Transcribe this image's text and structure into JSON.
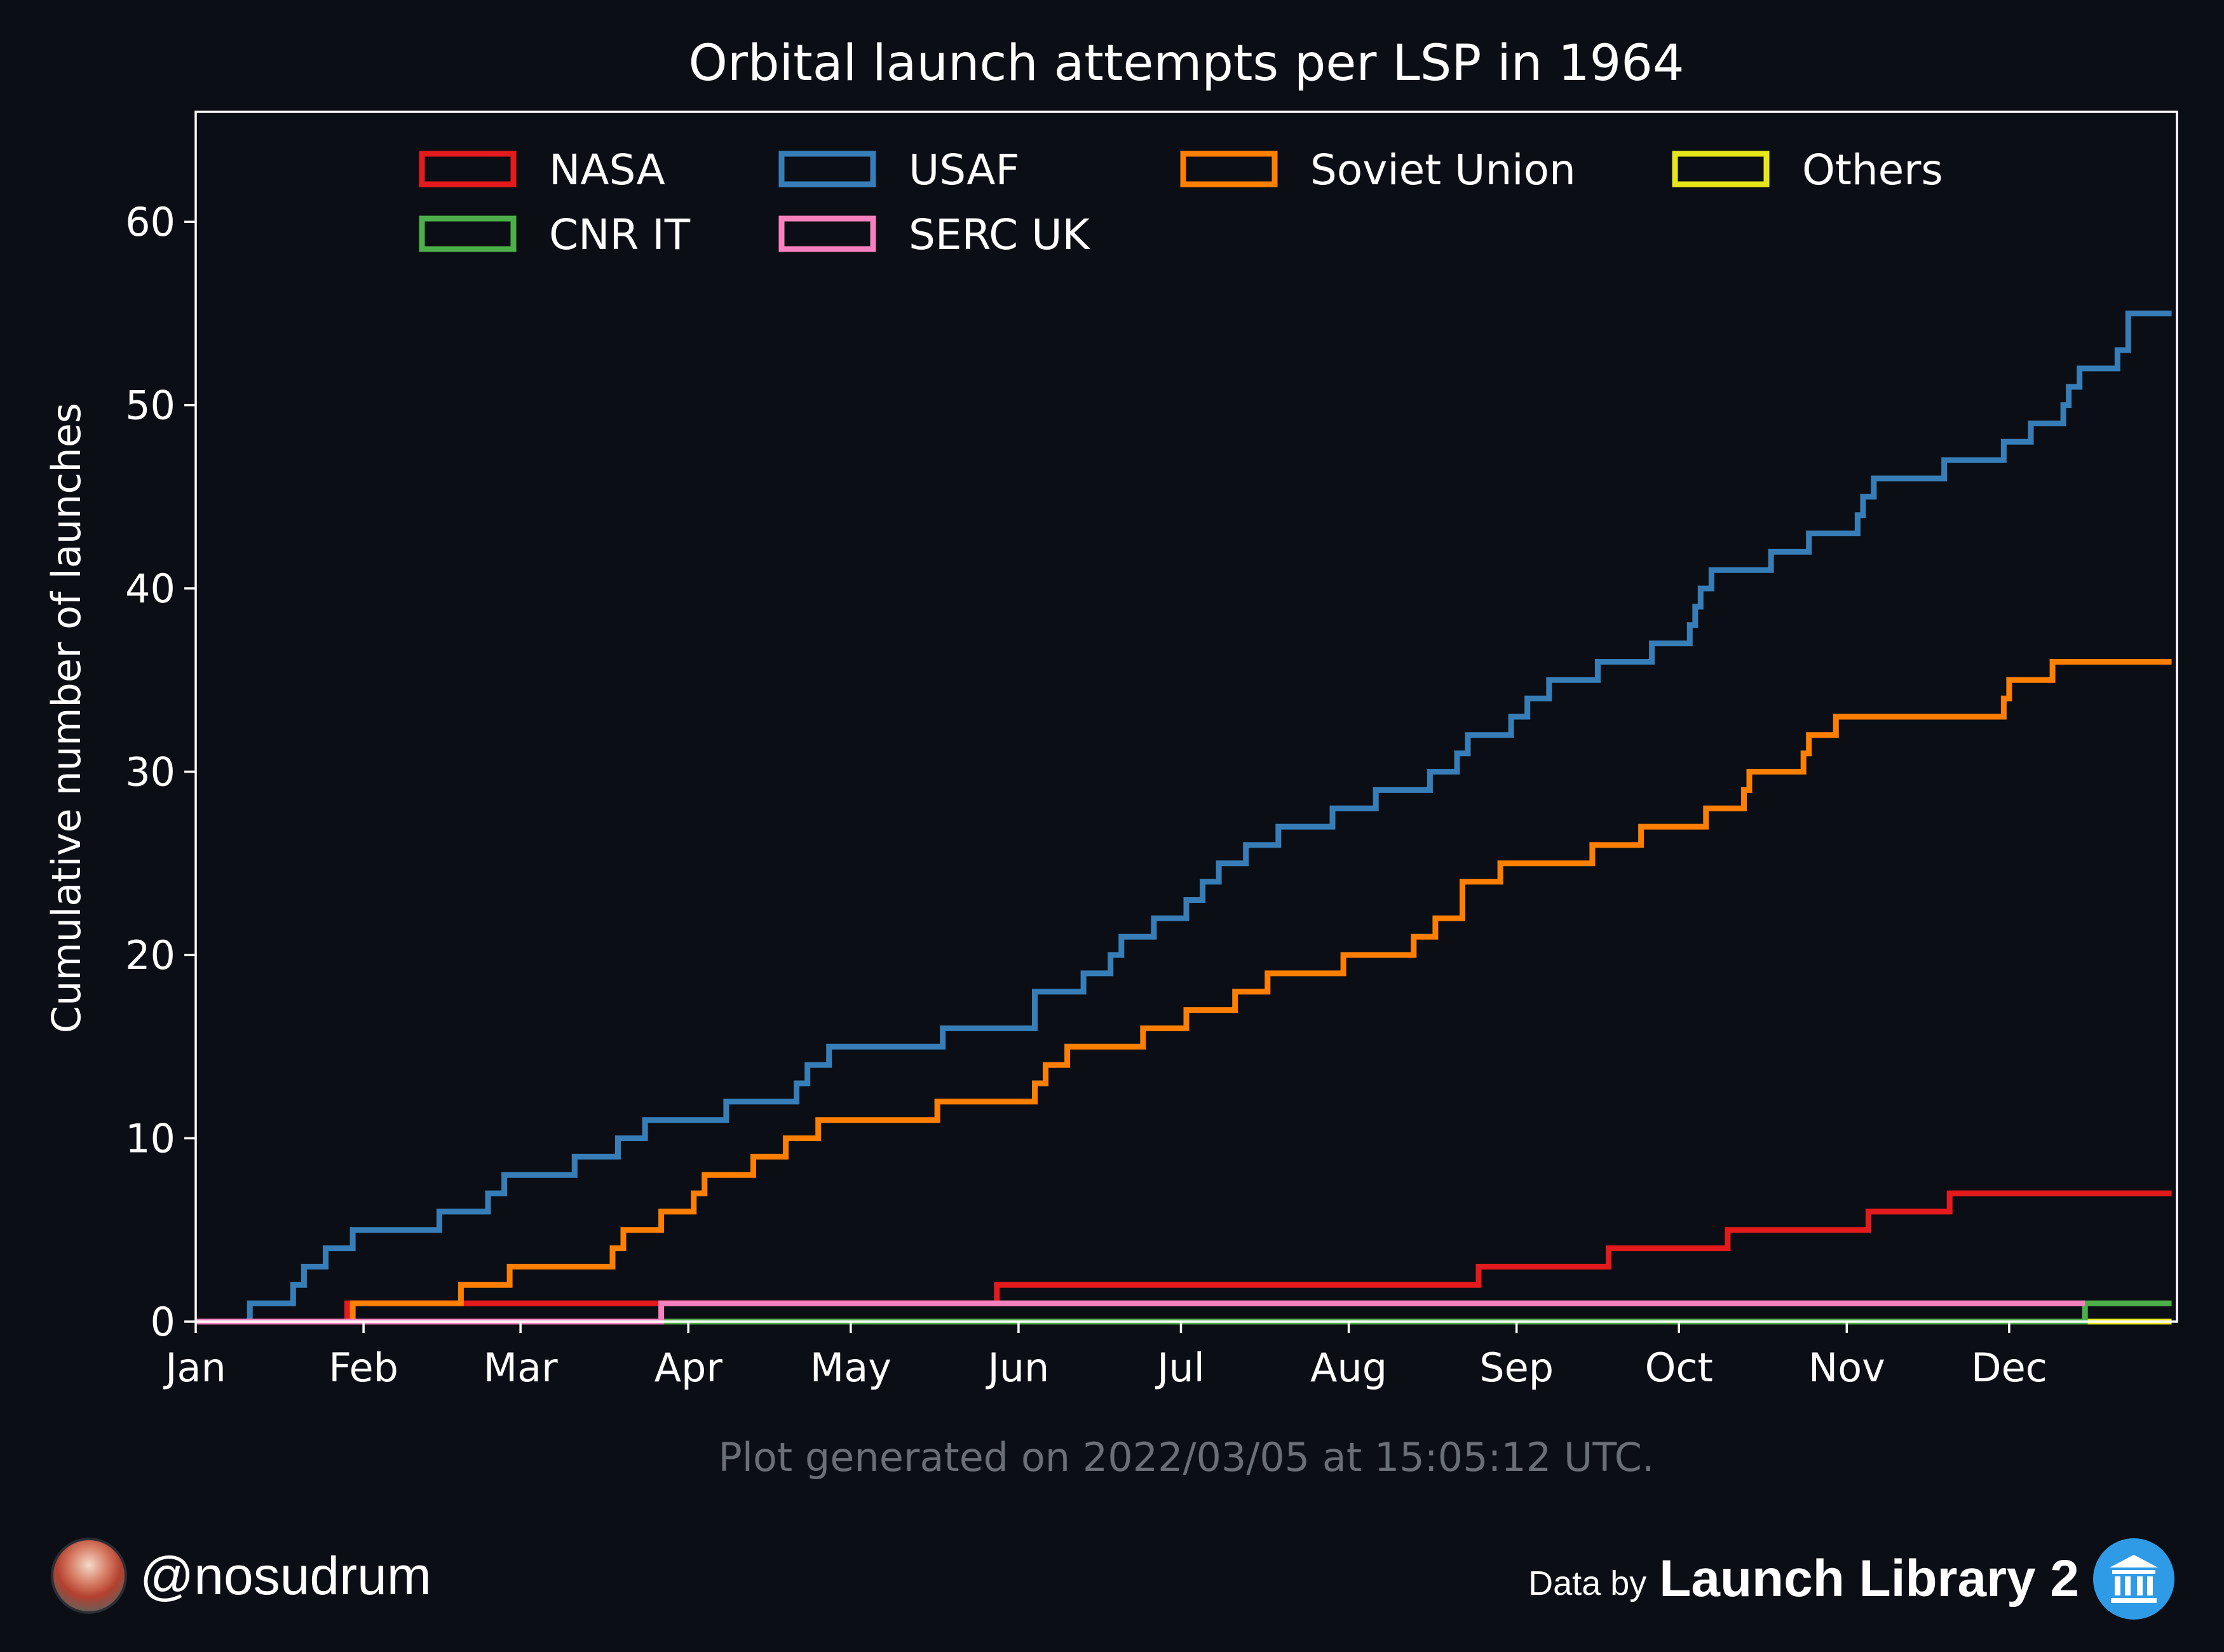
{
  "chart_data": {
    "type": "line",
    "step": true,
    "title": "Orbital launch attempts per LSP in 1964",
    "xlabel": "",
    "ylabel": "Cumulative number of launches",
    "xlim": [
      "1964-01-01",
      "1964-12-31"
    ],
    "ylim": [
      0,
      66
    ],
    "yticks": [
      0,
      10,
      20,
      30,
      40,
      50,
      60
    ],
    "xticks": [
      {
        "label": "Jan",
        "date": "1964-01-01"
      },
      {
        "label": "Feb",
        "date": "1964-02-01"
      },
      {
        "label": "Mar",
        "date": "1964-03-01"
      },
      {
        "label": "Apr",
        "date": "1964-04-01"
      },
      {
        "label": "May",
        "date": "1964-05-01"
      },
      {
        "label": "Jun",
        "date": "1964-06-01"
      },
      {
        "label": "Jul",
        "date": "1964-07-01"
      },
      {
        "label": "Aug",
        "date": "1964-08-01"
      },
      {
        "label": "Sep",
        "date": "1964-09-01"
      },
      {
        "label": "Oct",
        "date": "1964-10-01"
      },
      {
        "label": "Nov",
        "date": "1964-11-01"
      },
      {
        "label": "Dec",
        "date": "1964-12-01"
      }
    ],
    "grid": false,
    "legend_position": "top",
    "series": [
      {
        "name": "NASA",
        "color": "#e41a1c",
        "points": [
          [
            "1964-01-01",
            0
          ],
          [
            "1964-01-29",
            1
          ],
          [
            "1964-05-28",
            2
          ],
          [
            "1964-08-25",
            3
          ],
          [
            "1964-09-18",
            4
          ],
          [
            "1964-10-10",
            5
          ],
          [
            "1964-11-05",
            6
          ],
          [
            "1964-11-20",
            7
          ],
          [
            "1964-12-31",
            7
          ]
        ]
      },
      {
        "name": "USAF",
        "color": "#377eb8",
        "points": [
          [
            "1964-01-01",
            0
          ],
          [
            "1964-01-11",
            1
          ],
          [
            "1964-01-19",
            2
          ],
          [
            "1964-01-21",
            3
          ],
          [
            "1964-01-25",
            4
          ],
          [
            "1964-01-30",
            5
          ],
          [
            "1964-02-15",
            6
          ],
          [
            "1964-02-24",
            7
          ],
          [
            "1964-02-27",
            8
          ],
          [
            "1964-03-11",
            9
          ],
          [
            "1964-03-19",
            10
          ],
          [
            "1964-03-24",
            11
          ],
          [
            "1964-04-08",
            12
          ],
          [
            "1964-04-21",
            13
          ],
          [
            "1964-04-23",
            14
          ],
          [
            "1964-04-27",
            15
          ],
          [
            "1964-05-18",
            16
          ],
          [
            "1964-06-04",
            18
          ],
          [
            "1964-06-13",
            19
          ],
          [
            "1964-06-18",
            20
          ],
          [
            "1964-06-20",
            21
          ],
          [
            "1964-06-26",
            22
          ],
          [
            "1964-07-02",
            23
          ],
          [
            "1964-07-05",
            24
          ],
          [
            "1964-07-08",
            25
          ],
          [
            "1964-07-13",
            26
          ],
          [
            "1964-07-19",
            27
          ],
          [
            "1964-07-29",
            28
          ],
          [
            "1964-08-06",
            29
          ],
          [
            "1964-08-16",
            30
          ],
          [
            "1964-08-21",
            31
          ],
          [
            "1964-08-23",
            32
          ],
          [
            "1964-08-31",
            33
          ],
          [
            "1964-09-03",
            34
          ],
          [
            "1964-09-07",
            35
          ],
          [
            "1964-09-16",
            36
          ],
          [
            "1964-09-26",
            37
          ],
          [
            "1964-10-03",
            38
          ],
          [
            "1964-10-04",
            39
          ],
          [
            "1964-10-05",
            40
          ],
          [
            "1964-10-07",
            41
          ],
          [
            "1964-10-18",
            42
          ],
          [
            "1964-10-25",
            43
          ],
          [
            "1964-11-03",
            44
          ],
          [
            "1964-11-04",
            45
          ],
          [
            "1964-11-06",
            46
          ],
          [
            "1964-11-19",
            47
          ],
          [
            "1964-11-30",
            48
          ],
          [
            "1964-12-05",
            49
          ],
          [
            "1964-12-11",
            50
          ],
          [
            "1964-12-12",
            51
          ],
          [
            "1964-12-14",
            52
          ],
          [
            "1964-12-21",
            53
          ],
          [
            "1964-12-23",
            55
          ],
          [
            "1964-12-31",
            55
          ]
        ]
      },
      {
        "name": "Soviet Union",
        "color": "#ff7f00",
        "points": [
          [
            "1964-01-01",
            0
          ],
          [
            "1964-01-30",
            1
          ],
          [
            "1964-02-19",
            2
          ],
          [
            "1964-02-28",
            3
          ],
          [
            "1964-03-18",
            4
          ],
          [
            "1964-03-20",
            5
          ],
          [
            "1964-03-27",
            6
          ],
          [
            "1964-04-02",
            7
          ],
          [
            "1964-04-04",
            8
          ],
          [
            "1964-04-13",
            9
          ],
          [
            "1964-04-19",
            10
          ],
          [
            "1964-04-25",
            11
          ],
          [
            "1964-05-17",
            12
          ],
          [
            "1964-06-04",
            13
          ],
          [
            "1964-06-06",
            14
          ],
          [
            "1964-06-10",
            15
          ],
          [
            "1964-06-24",
            16
          ],
          [
            "1964-07-02",
            17
          ],
          [
            "1964-07-11",
            18
          ],
          [
            "1964-07-17",
            19
          ],
          [
            "1964-07-31",
            20
          ],
          [
            "1964-08-13",
            21
          ],
          [
            "1964-08-17",
            22
          ],
          [
            "1964-08-22",
            24
          ],
          [
            "1964-08-29",
            25
          ],
          [
            "1964-09-15",
            26
          ],
          [
            "1964-09-24",
            27
          ],
          [
            "1964-10-06",
            28
          ],
          [
            "1964-10-13",
            29
          ],
          [
            "1964-10-14",
            30
          ],
          [
            "1964-10-24",
            31
          ],
          [
            "1964-10-25",
            32
          ],
          [
            "1964-10-30",
            33
          ],
          [
            "1964-11-30",
            34
          ],
          [
            "1964-12-01",
            35
          ],
          [
            "1964-12-09",
            36
          ],
          [
            "1964-12-31",
            36
          ]
        ]
      },
      {
        "name": "Others",
        "color": "#e6e619",
        "points": [
          [
            "1964-01-01",
            0
          ],
          [
            "1964-12-31",
            0
          ]
        ]
      },
      {
        "name": "CNR IT",
        "color": "#4daf4a",
        "points": [
          [
            "1964-01-01",
            0
          ],
          [
            "1964-12-15",
            1
          ],
          [
            "1964-12-31",
            1
          ]
        ]
      },
      {
        "name": "SERC UK",
        "color": "#f781bf",
        "points": [
          [
            "1964-01-01",
            0
          ],
          [
            "1964-03-27",
            1
          ],
          [
            "1964-12-15",
            1
          ]
        ]
      }
    ],
    "legend_order": [
      "NASA",
      "USAF",
      "Soviet Union",
      "Others",
      "CNR IT",
      "SERC UK"
    ]
  },
  "caption": "Plot generated on 2022/03/05 at 15:05:12 UTC.",
  "footer": {
    "handle": "@nosudrum",
    "data_by": "Data by",
    "source": "Launch Library 2"
  },
  "icons": {
    "avatar": "astronaut-avatar",
    "source_icon": "library-building-icon"
  }
}
